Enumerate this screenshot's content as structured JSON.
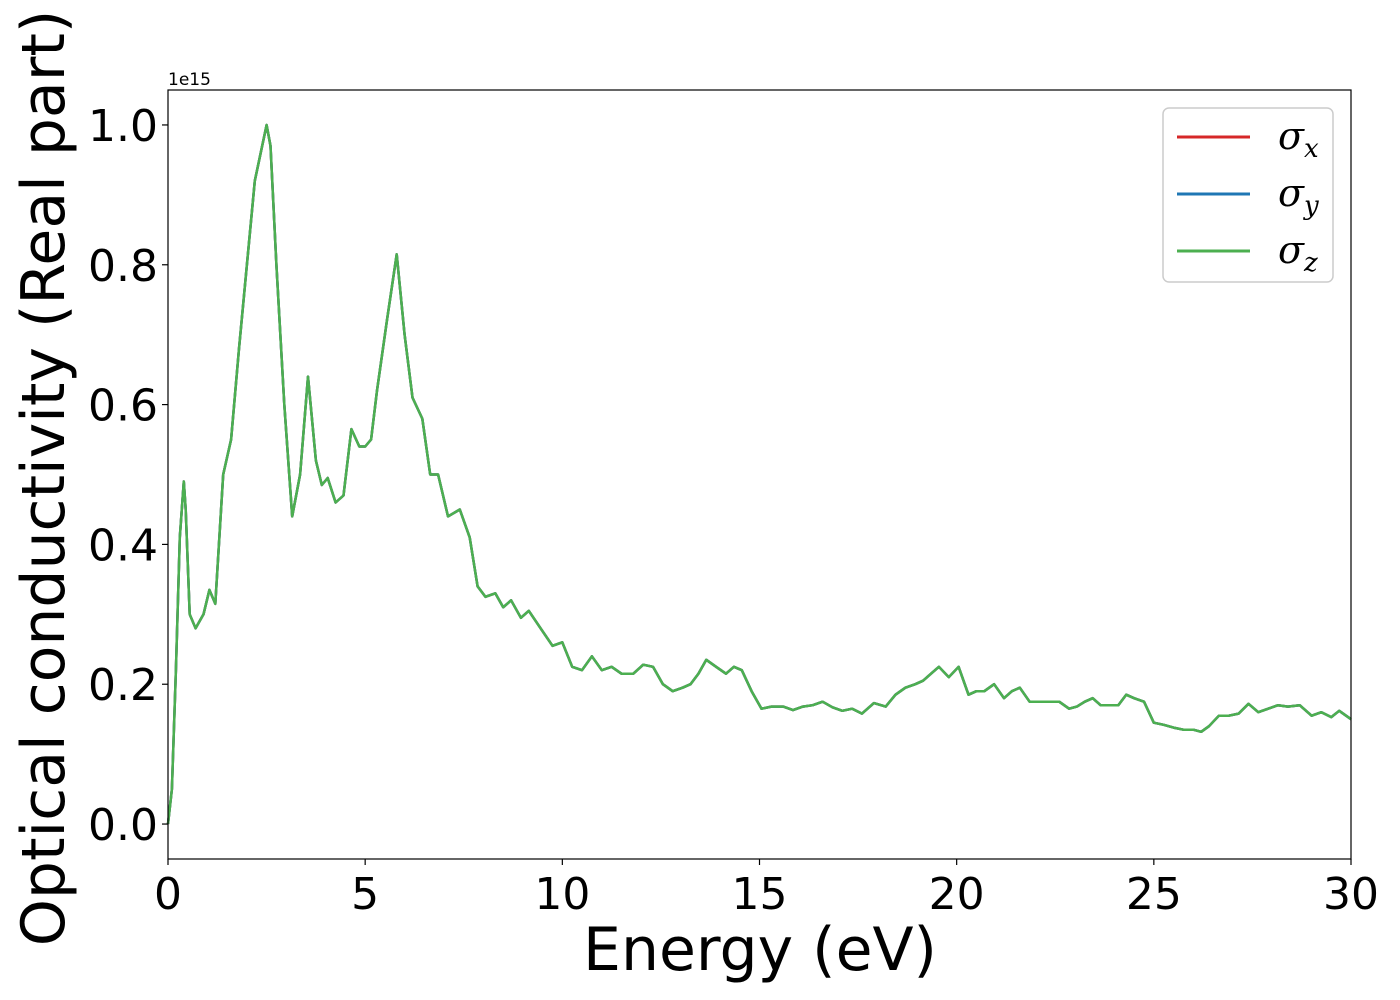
{
  "chart_data": {
    "type": "line",
    "title": "",
    "xlabel": "Energy (eV)",
    "ylabel": "Optical conductivity (Real part)",
    "y_offset_label": "1e15",
    "xlim": [
      0,
      30
    ],
    "ylim": [
      -0.05,
      1.05
    ],
    "x_ticks": [
      0,
      5,
      10,
      15,
      20,
      25,
      30
    ],
    "x_tick_labels": [
      "0",
      "5",
      "10",
      "15",
      "20",
      "25",
      "30"
    ],
    "y_ticks": [
      0.0,
      0.2,
      0.4,
      0.6,
      0.8,
      1.0
    ],
    "y_tick_labels": [
      "0.0",
      "0.2",
      "0.4",
      "0.6",
      "0.8",
      "1.0"
    ],
    "grid": false,
    "legend_position": "top-right",
    "series": [
      {
        "legend_symbol": "σ",
        "legend_subscript": "x",
        "color": "#d62728",
        "x": [
          0,
          0.1,
          0.2,
          0.3,
          0.4,
          0.45,
          0.55,
          0.7,
          0.9,
          1.05,
          1.2,
          1.4,
          1.6,
          1.8,
          2.0,
          2.2,
          2.35,
          2.5,
          2.6,
          2.75,
          2.95,
          3.15,
          3.35,
          3.55,
          3.75,
          3.9,
          4.05,
          4.25,
          4.45,
          4.65,
          4.85,
          5.0,
          5.15,
          5.3,
          5.55,
          5.8,
          6.0,
          6.2,
          6.45,
          6.65,
          6.85,
          7.1,
          7.4,
          7.65,
          7.85,
          8.05,
          8.3,
          8.5,
          8.7,
          8.95,
          9.15,
          9.45,
          9.75,
          10.0,
          10.25,
          10.5,
          10.75,
          11.0,
          11.25,
          11.5,
          11.8,
          12.05,
          12.3,
          12.55,
          12.8,
          13.05,
          13.25,
          13.45,
          13.65,
          13.9,
          14.15,
          14.35,
          14.55,
          14.8,
          15.05,
          15.3,
          15.6,
          15.85,
          16.1,
          16.35,
          16.6,
          16.85,
          17.1,
          17.35,
          17.6,
          17.9,
          18.2,
          18.45,
          18.7,
          18.95,
          19.15,
          19.35,
          19.55,
          19.8,
          20.05,
          20.3,
          20.5,
          20.7,
          20.95,
          21.2,
          21.4,
          21.6,
          21.85,
          22.1,
          22.35,
          22.6,
          22.85,
          23.05,
          23.25,
          23.45,
          23.65,
          23.9,
          24.1,
          24.3,
          24.5,
          24.75,
          25.0,
          25.25,
          25.5,
          25.75,
          26.0,
          26.2,
          26.4,
          26.65,
          26.9,
          27.15,
          27.4,
          27.65,
          27.9,
          28.15,
          28.4,
          28.7,
          29.0,
          29.25,
          29.5,
          29.7,
          30.0
        ],
        "y": [
          0.0,
          0.05,
          0.22,
          0.41,
          0.49,
          0.45,
          0.3,
          0.28,
          0.3,
          0.335,
          0.315,
          0.5,
          0.55,
          0.68,
          0.8,
          0.92,
          0.96,
          1.0,
          0.97,
          0.8,
          0.6,
          0.44,
          0.5,
          0.64,
          0.52,
          0.485,
          0.495,
          0.46,
          0.47,
          0.565,
          0.54,
          0.54,
          0.55,
          0.62,
          0.72,
          0.815,
          0.7,
          0.61,
          0.58,
          0.5,
          0.5,
          0.44,
          0.45,
          0.41,
          0.34,
          0.325,
          0.33,
          0.31,
          0.32,
          0.295,
          0.305,
          0.28,
          0.255,
          0.26,
          0.225,
          0.22,
          0.24,
          0.22,
          0.225,
          0.215,
          0.215,
          0.228,
          0.225,
          0.2,
          0.19,
          0.195,
          0.2,
          0.215,
          0.235,
          0.225,
          0.215,
          0.225,
          0.22,
          0.19,
          0.165,
          0.168,
          0.168,
          0.163,
          0.168,
          0.17,
          0.175,
          0.167,
          0.162,
          0.165,
          0.158,
          0.173,
          0.168,
          0.185,
          0.195,
          0.2,
          0.205,
          0.215,
          0.225,
          0.21,
          0.225,
          0.185,
          0.19,
          0.19,
          0.2,
          0.18,
          0.19,
          0.195,
          0.175,
          0.175,
          0.175,
          0.175,
          0.165,
          0.168,
          0.175,
          0.18,
          0.17,
          0.17,
          0.17,
          0.185,
          0.18,
          0.175,
          0.145,
          0.142,
          0.138,
          0.135,
          0.135,
          0.132,
          0.14,
          0.155,
          0.155,
          0.158,
          0.172,
          0.16,
          0.165,
          0.17,
          0.168,
          0.17,
          0.155,
          0.16,
          0.153,
          0.162,
          0.15
        ]
      },
      {
        "legend_symbol": "σ",
        "legend_subscript": "y",
        "color": "#1f77b4",
        "x": [
          0,
          0.1,
          0.2,
          0.3,
          0.4,
          0.45,
          0.55,
          0.7,
          0.9,
          1.05,
          1.2,
          1.4,
          1.6,
          1.8,
          2.0,
          2.2,
          2.35,
          2.5,
          2.6,
          2.75,
          2.95,
          3.15,
          3.35,
          3.55,
          3.75,
          3.9,
          4.05,
          4.25,
          4.45,
          4.65,
          4.85,
          5.0,
          5.15,
          5.3,
          5.55,
          5.8,
          6.0,
          6.2,
          6.45,
          6.65,
          6.85,
          7.1,
          7.4,
          7.65,
          7.85,
          8.05,
          8.3,
          8.5,
          8.7,
          8.95,
          9.15,
          9.45,
          9.75,
          10.0,
          10.25,
          10.5,
          10.75,
          11.0,
          11.25,
          11.5,
          11.8,
          12.05,
          12.3,
          12.55,
          12.8,
          13.05,
          13.25,
          13.45,
          13.65,
          13.9,
          14.15,
          14.35,
          14.55,
          14.8,
          15.05,
          15.3,
          15.6,
          15.85,
          16.1,
          16.35,
          16.6,
          16.85,
          17.1,
          17.35,
          17.6,
          17.9,
          18.2,
          18.45,
          18.7,
          18.95,
          19.15,
          19.35,
          19.55,
          19.8,
          20.05,
          20.3,
          20.5,
          20.7,
          20.95,
          21.2,
          21.4,
          21.6,
          21.85,
          22.1,
          22.35,
          22.6,
          22.85,
          23.05,
          23.25,
          23.45,
          23.65,
          23.9,
          24.1,
          24.3,
          24.5,
          24.75,
          25.0,
          25.25,
          25.5,
          25.75,
          26.0,
          26.2,
          26.4,
          26.65,
          26.9,
          27.15,
          27.4,
          27.65,
          27.9,
          28.15,
          28.4,
          28.7,
          29.0,
          29.25,
          29.5,
          29.7,
          30.0
        ],
        "y": [
          0.0,
          0.05,
          0.22,
          0.41,
          0.49,
          0.45,
          0.3,
          0.28,
          0.3,
          0.335,
          0.315,
          0.5,
          0.55,
          0.68,
          0.8,
          0.92,
          0.96,
          1.0,
          0.97,
          0.8,
          0.6,
          0.44,
          0.5,
          0.64,
          0.52,
          0.485,
          0.495,
          0.46,
          0.47,
          0.565,
          0.54,
          0.54,
          0.55,
          0.62,
          0.72,
          0.815,
          0.7,
          0.61,
          0.58,
          0.5,
          0.5,
          0.44,
          0.45,
          0.41,
          0.34,
          0.325,
          0.33,
          0.31,
          0.32,
          0.295,
          0.305,
          0.28,
          0.255,
          0.26,
          0.225,
          0.22,
          0.24,
          0.22,
          0.225,
          0.215,
          0.215,
          0.228,
          0.225,
          0.2,
          0.19,
          0.195,
          0.2,
          0.215,
          0.235,
          0.225,
          0.215,
          0.225,
          0.22,
          0.19,
          0.165,
          0.168,
          0.168,
          0.163,
          0.168,
          0.17,
          0.175,
          0.167,
          0.162,
          0.165,
          0.158,
          0.173,
          0.168,
          0.185,
          0.195,
          0.2,
          0.205,
          0.215,
          0.225,
          0.21,
          0.225,
          0.185,
          0.19,
          0.19,
          0.2,
          0.18,
          0.19,
          0.195,
          0.175,
          0.175,
          0.175,
          0.175,
          0.165,
          0.168,
          0.175,
          0.18,
          0.17,
          0.17,
          0.17,
          0.185,
          0.18,
          0.175,
          0.145,
          0.142,
          0.138,
          0.135,
          0.135,
          0.132,
          0.14,
          0.155,
          0.155,
          0.158,
          0.172,
          0.16,
          0.165,
          0.17,
          0.168,
          0.17,
          0.155,
          0.16,
          0.153,
          0.162,
          0.15
        ]
      },
      {
        "legend_symbol": "σ",
        "legend_subscript": "z",
        "color": "#4caf50",
        "x": [
          0,
          0.1,
          0.2,
          0.3,
          0.4,
          0.45,
          0.55,
          0.7,
          0.9,
          1.05,
          1.2,
          1.4,
          1.6,
          1.8,
          2.0,
          2.2,
          2.35,
          2.5,
          2.6,
          2.75,
          2.95,
          3.15,
          3.35,
          3.55,
          3.75,
          3.9,
          4.05,
          4.25,
          4.45,
          4.65,
          4.85,
          5.0,
          5.15,
          5.3,
          5.55,
          5.8,
          6.0,
          6.2,
          6.45,
          6.65,
          6.85,
          7.1,
          7.4,
          7.65,
          7.85,
          8.05,
          8.3,
          8.5,
          8.7,
          8.95,
          9.15,
          9.45,
          9.75,
          10.0,
          10.25,
          10.5,
          10.75,
          11.0,
          11.25,
          11.5,
          11.8,
          12.05,
          12.3,
          12.55,
          12.8,
          13.05,
          13.25,
          13.45,
          13.65,
          13.9,
          14.15,
          14.35,
          14.55,
          14.8,
          15.05,
          15.3,
          15.6,
          15.85,
          16.1,
          16.35,
          16.6,
          16.85,
          17.1,
          17.35,
          17.6,
          17.9,
          18.2,
          18.45,
          18.7,
          18.95,
          19.15,
          19.35,
          19.55,
          19.8,
          20.05,
          20.3,
          20.5,
          20.7,
          20.95,
          21.2,
          21.4,
          21.6,
          21.85,
          22.1,
          22.35,
          22.6,
          22.85,
          23.05,
          23.25,
          23.45,
          23.65,
          23.9,
          24.1,
          24.3,
          24.5,
          24.75,
          25.0,
          25.25,
          25.5,
          25.75,
          26.0,
          26.2,
          26.4,
          26.65,
          26.9,
          27.15,
          27.4,
          27.65,
          27.9,
          28.15,
          28.4,
          28.7,
          29.0,
          29.25,
          29.5,
          29.7,
          30.0
        ],
        "y": [
          0.0,
          0.05,
          0.22,
          0.41,
          0.49,
          0.45,
          0.3,
          0.28,
          0.3,
          0.335,
          0.315,
          0.5,
          0.55,
          0.68,
          0.8,
          0.92,
          0.96,
          1.0,
          0.97,
          0.8,
          0.6,
          0.44,
          0.5,
          0.64,
          0.52,
          0.485,
          0.495,
          0.46,
          0.47,
          0.565,
          0.54,
          0.54,
          0.55,
          0.62,
          0.72,
          0.815,
          0.7,
          0.61,
          0.58,
          0.5,
          0.5,
          0.44,
          0.45,
          0.41,
          0.34,
          0.325,
          0.33,
          0.31,
          0.32,
          0.295,
          0.305,
          0.28,
          0.255,
          0.26,
          0.225,
          0.22,
          0.24,
          0.22,
          0.225,
          0.215,
          0.215,
          0.228,
          0.225,
          0.2,
          0.19,
          0.195,
          0.2,
          0.215,
          0.235,
          0.225,
          0.215,
          0.225,
          0.22,
          0.19,
          0.165,
          0.168,
          0.168,
          0.163,
          0.168,
          0.17,
          0.175,
          0.167,
          0.162,
          0.165,
          0.158,
          0.173,
          0.168,
          0.185,
          0.195,
          0.2,
          0.205,
          0.215,
          0.225,
          0.21,
          0.225,
          0.185,
          0.19,
          0.19,
          0.2,
          0.18,
          0.19,
          0.195,
          0.175,
          0.175,
          0.175,
          0.175,
          0.165,
          0.168,
          0.175,
          0.18,
          0.17,
          0.17,
          0.17,
          0.185,
          0.18,
          0.175,
          0.145,
          0.142,
          0.138,
          0.135,
          0.135,
          0.132,
          0.14,
          0.155,
          0.155,
          0.158,
          0.172,
          0.16,
          0.165,
          0.17,
          0.168,
          0.17,
          0.155,
          0.16,
          0.153,
          0.162,
          0.15
        ]
      }
    ]
  }
}
